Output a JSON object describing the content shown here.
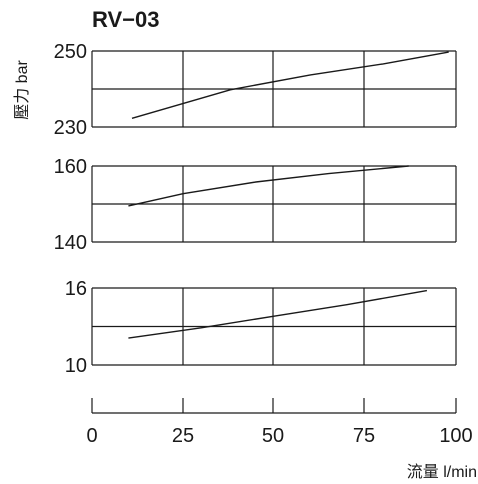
{
  "chart_data": {
    "type": "line",
    "title": "RV−03",
    "ylabel": "壓力 bar",
    "xlabel": "流量 l/min",
    "x_ticks": [
      "0",
      "25",
      "50",
      "75",
      "100"
    ],
    "xlim": [
      0,
      100
    ],
    "grid": true,
    "panels": [
      {
        "ylim": [
          230,
          250
        ],
        "y_tick_labels": [
          "250",
          "230"
        ],
        "series": [
          {
            "x": [
              11,
              38,
              60,
              80,
              98
            ],
            "y": [
              232.3,
              239.8,
              243.7,
              246.6,
              249.7
            ]
          }
        ]
      },
      {
        "ylim": [
          140,
          160
        ],
        "y_tick_labels": [
          "160",
          "140"
        ],
        "series": [
          {
            "x": [
              10,
              25,
              45,
              65,
              87
            ],
            "y": [
              149.5,
              152.7,
              155.8,
              158.0,
              160.0
            ]
          }
        ]
      },
      {
        "ylim": [
          10,
          16
        ],
        "y_tick_labels": [
          "16",
          "10"
        ],
        "series": [
          {
            "x": [
              10,
              30,
              50,
              70,
              92
            ],
            "y": [
              12.1,
              12.9,
              13.8,
              14.7,
              15.8
            ]
          }
        ]
      }
    ]
  }
}
